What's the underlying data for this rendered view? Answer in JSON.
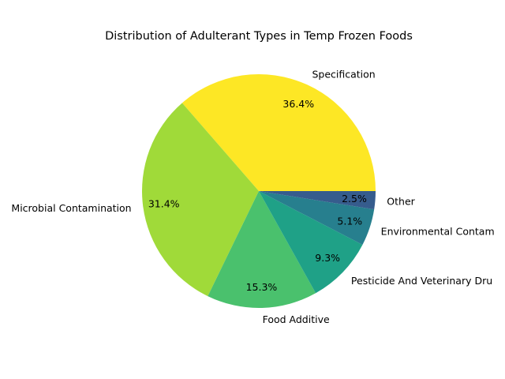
{
  "chart_data": {
    "type": "pie",
    "title": "Distribution of Adulterant Types in Temp Frozen Foods",
    "slices": [
      {
        "label": "Specification",
        "value": 36.4,
        "pct_label": "36.4%",
        "color": "#fde725"
      },
      {
        "label": "Microbial Contamination",
        "value": 31.4,
        "pct_label": "31.4%",
        "color": "#a0da39"
      },
      {
        "label": "Food Additive",
        "value": 15.3,
        "pct_label": "15.3%",
        "color": "#4ac16d"
      },
      {
        "label": "Pesticide And Veterinary Dru",
        "value": 9.3,
        "pct_label": "9.3%",
        "color": "#1fa187"
      },
      {
        "label": "Environmental Contam",
        "value": 5.1,
        "pct_label": "5.1%",
        "color": "#277f8e"
      },
      {
        "label": "Other",
        "value": 2.5,
        "pct_label": "2.5%",
        "color": "#365c8d"
      }
    ],
    "start_angle_deg": 0,
    "direction": "counterclockwise",
    "legend": "none"
  }
}
